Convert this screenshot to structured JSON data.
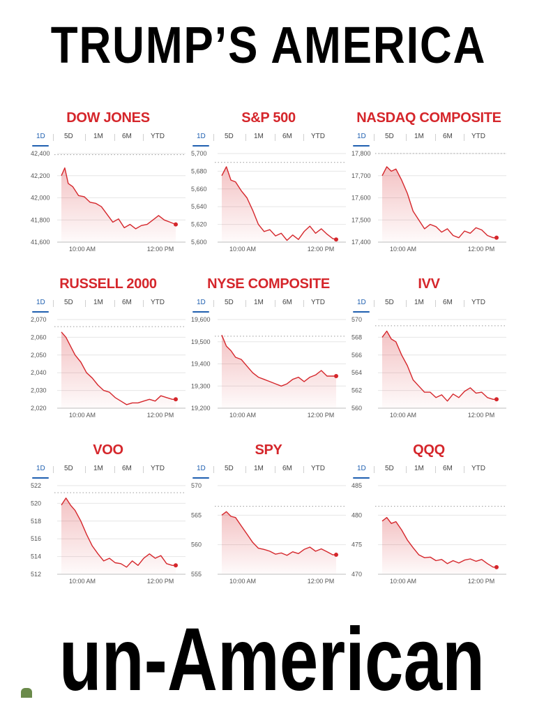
{
  "headline_top": "TRUMP’S AMERICA",
  "headline_bottom": "un-American",
  "tabs": [
    "1D",
    "5D",
    "1M",
    "6M",
    "YTD"
  ],
  "colors": {
    "title": "#d5262b",
    "line": "#d5262b",
    "tab_active": "#1f5fb0",
    "grid": "#e6e6e6",
    "reference": "#9a9a9a"
  },
  "chart_data": [
    {
      "type": "area",
      "title": "DOW JONES",
      "yticks": [
        "42,400",
        "42,200",
        "42,000",
        "41,800",
        "41,600"
      ],
      "ylim": [
        41600,
        42400
      ],
      "reference": 42390,
      "xticks": [
        "10:00 AM",
        "12:00 PM"
      ],
      "x": [
        0,
        0.03,
        0.06,
        0.1,
        0.15,
        0.2,
        0.25,
        0.3,
        0.35,
        0.4,
        0.45,
        0.5,
        0.55,
        0.6,
        0.65,
        0.7,
        0.75,
        0.8,
        0.85,
        0.9,
        0.95,
        1.0
      ],
      "y": [
        42200,
        42270,
        42130,
        42100,
        42020,
        42010,
        41960,
        41950,
        41920,
        41850,
        41780,
        41810,
        41730,
        41760,
        41720,
        41750,
        41760,
        41800,
        41840,
        41800,
        41780,
        41760
      ]
    },
    {
      "type": "area",
      "title": "S&P 500",
      "yticks": [
        "5,700",
        "5,680",
        "5,660",
        "5,640",
        "5,620",
        "5,600"
      ],
      "ylim": [
        5600,
        5700
      ],
      "reference": 5690,
      "xticks": [
        "10:00 AM",
        "12:00 PM"
      ],
      "x": [
        0,
        0.04,
        0.08,
        0.12,
        0.17,
        0.22,
        0.27,
        0.32,
        0.37,
        0.42,
        0.47,
        0.52,
        0.57,
        0.62,
        0.67,
        0.72,
        0.77,
        0.82,
        0.87,
        0.92,
        0.97,
        1.0
      ],
      "y": [
        5675,
        5685,
        5670,
        5668,
        5658,
        5650,
        5636,
        5620,
        5612,
        5614,
        5607,
        5610,
        5602,
        5608,
        5603,
        5612,
        5618,
        5610,
        5615,
        5609,
        5604,
        5603
      ]
    },
    {
      "type": "area",
      "title": "NASDAQ COMPOSITE",
      "yticks": [
        "17,800",
        "17,700",
        "17,600",
        "17,500",
        "17,400"
      ],
      "ylim": [
        17400,
        17800
      ],
      "reference": 17800,
      "xticks": [
        "10:00 AM",
        "12:00 PM"
      ],
      "x": [
        0,
        0.04,
        0.08,
        0.12,
        0.17,
        0.22,
        0.27,
        0.32,
        0.37,
        0.42,
        0.47,
        0.52,
        0.57,
        0.62,
        0.67,
        0.72,
        0.77,
        0.82,
        0.87,
        0.92,
        0.97,
        1.0
      ],
      "y": [
        17700,
        17740,
        17720,
        17730,
        17680,
        17620,
        17540,
        17500,
        17460,
        17480,
        17470,
        17445,
        17460,
        17430,
        17420,
        17450,
        17440,
        17465,
        17455,
        17430,
        17420,
        17420
      ]
    },
    {
      "type": "area",
      "title": "RUSSELL 2000",
      "yticks": [
        "2,070",
        "2,060",
        "2,050",
        "2,040",
        "2,030",
        "2,020"
      ],
      "ylim": [
        2020,
        2070
      ],
      "reference": 2066,
      "xticks": [
        "10:00 AM",
        "12:00 PM"
      ],
      "x": [
        0,
        0.04,
        0.08,
        0.12,
        0.17,
        0.22,
        0.27,
        0.32,
        0.37,
        0.42,
        0.47,
        0.52,
        0.57,
        0.62,
        0.67,
        0.72,
        0.77,
        0.82,
        0.87,
        0.92,
        0.97,
        1.0
      ],
      "y": [
        2063,
        2060,
        2055,
        2050,
        2046,
        2040,
        2037,
        2033,
        2030,
        2029,
        2026,
        2024,
        2022,
        2023,
        2023,
        2024,
        2025,
        2024,
        2027,
        2026,
        2025,
        2025
      ]
    },
    {
      "type": "area",
      "title": "NYSE COMPOSITE",
      "yticks": [
        "19,600",
        "19,500",
        "19,400",
        "19,300",
        "19,200"
      ],
      "ylim": [
        19200,
        19600
      ],
      "reference": 19525,
      "xticks": [
        "10:00 AM",
        "12:00 PM"
      ],
      "x": [
        0,
        0.04,
        0.08,
        0.12,
        0.17,
        0.22,
        0.27,
        0.32,
        0.37,
        0.42,
        0.47,
        0.52,
        0.57,
        0.62,
        0.67,
        0.72,
        0.77,
        0.82,
        0.87,
        0.92,
        0.97,
        1.0
      ],
      "y": [
        19530,
        19480,
        19460,
        19430,
        19420,
        19390,
        19360,
        19340,
        19330,
        19320,
        19310,
        19300,
        19310,
        19330,
        19340,
        19320,
        19340,
        19350,
        19370,
        19345,
        19345,
        19345
      ]
    },
    {
      "type": "area",
      "title": "IVV",
      "yticks": [
        "570",
        "568",
        "566",
        "564",
        "562",
        "560"
      ],
      "ylim": [
        560,
        570
      ],
      "reference": 569.3,
      "xticks": [
        "10:00 AM",
        "12:00 PM"
      ],
      "x": [
        0,
        0.04,
        0.08,
        0.12,
        0.17,
        0.22,
        0.27,
        0.32,
        0.37,
        0.42,
        0.47,
        0.52,
        0.57,
        0.62,
        0.67,
        0.72,
        0.77,
        0.82,
        0.87,
        0.92,
        0.97,
        1.0
      ],
      "y": [
        568,
        568.7,
        567.8,
        567.5,
        566,
        564.8,
        563.2,
        562.5,
        561.8,
        561.8,
        561.2,
        561.5,
        560.8,
        561.6,
        561.2,
        561.9,
        562.3,
        561.7,
        561.8,
        561.2,
        561,
        561
      ]
    },
    {
      "type": "area",
      "title": "VOO",
      "yticks": [
        "522",
        "520",
        "518",
        "516",
        "514",
        "512"
      ],
      "ylim": [
        512,
        522
      ],
      "reference": 521.2,
      "xticks": [
        "10:00 AM",
        "12:00 PM"
      ],
      "x": [
        0,
        0.04,
        0.08,
        0.12,
        0.17,
        0.22,
        0.27,
        0.32,
        0.37,
        0.42,
        0.47,
        0.52,
        0.57,
        0.62,
        0.67,
        0.72,
        0.77,
        0.82,
        0.87,
        0.92,
        0.97,
        1.0
      ],
      "y": [
        519.8,
        520.6,
        519.8,
        519.2,
        518,
        516.5,
        515.2,
        514.3,
        513.5,
        513.8,
        513.3,
        513.2,
        512.8,
        513.5,
        513,
        513.8,
        514.3,
        513.8,
        514.1,
        513.2,
        513,
        513
      ]
    },
    {
      "type": "area",
      "title": "SPY",
      "yticks": [
        "570",
        "565",
        "560",
        "555"
      ],
      "ylim": [
        555,
        570
      ],
      "reference": 566.5,
      "xticks": [
        "10:00 AM",
        "12:00 PM"
      ],
      "x": [
        0,
        0.04,
        0.08,
        0.12,
        0.17,
        0.22,
        0.27,
        0.32,
        0.37,
        0.42,
        0.47,
        0.52,
        0.57,
        0.62,
        0.67,
        0.72,
        0.77,
        0.82,
        0.87,
        0.92,
        0.97,
        1.0
      ],
      "y": [
        565,
        565.6,
        564.8,
        564.6,
        563.2,
        561.8,
        560.4,
        559.4,
        559.2,
        558.9,
        558.4,
        558.6,
        558.2,
        558.8,
        558.5,
        559.2,
        559.6,
        558.9,
        559.3,
        558.8,
        558.3,
        558.3
      ]
    },
    {
      "type": "area",
      "title": "QQQ",
      "yticks": [
        "485",
        "480",
        "475",
        "470"
      ],
      "ylim": [
        470,
        485
      ],
      "reference": 481.5,
      "xticks": [
        "10:00 AM",
        "12:00 PM"
      ],
      "x": [
        0,
        0.04,
        0.08,
        0.12,
        0.17,
        0.22,
        0.27,
        0.32,
        0.37,
        0.42,
        0.47,
        0.52,
        0.57,
        0.62,
        0.67,
        0.72,
        0.77,
        0.82,
        0.87,
        0.92,
        0.97,
        1.0
      ],
      "y": [
        479,
        479.6,
        478.6,
        478.9,
        477.5,
        475.8,
        474.5,
        473.3,
        472.8,
        472.9,
        472.3,
        472.5,
        471.8,
        472.3,
        471.9,
        472.4,
        472.6,
        472.2,
        472.5,
        471.8,
        471.2,
        471.2
      ]
    }
  ]
}
